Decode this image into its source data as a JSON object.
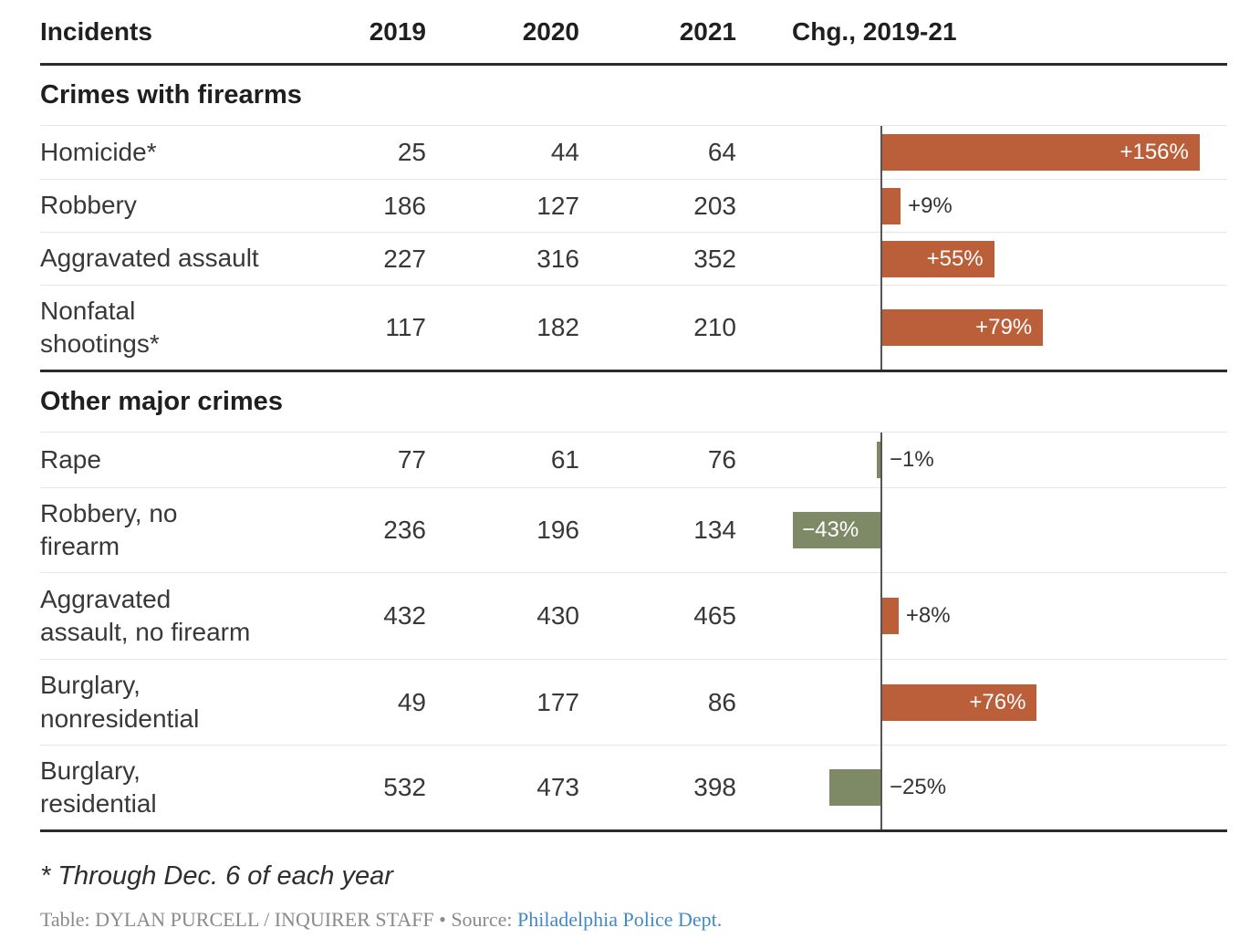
{
  "header": {
    "incidents": "Incidents",
    "y2019": "2019",
    "y2020": "2020",
    "y2021": "2021",
    "chg": "Chg., 2019-21"
  },
  "sections": [
    {
      "title": "Crimes with firearms",
      "rows": [
        {
          "label": "Homicide*",
          "v2019": "25",
          "v2020": "44",
          "v2021": "64",
          "chg": 156,
          "chg_label": "+156%"
        },
        {
          "label": "Robbery",
          "v2019": "186",
          "v2020": "127",
          "v2021": "203",
          "chg": 9,
          "chg_label": "+9%"
        },
        {
          "label": "Aggravated assault",
          "v2019": "227",
          "v2020": "316",
          "v2021": "352",
          "chg": 55,
          "chg_label": "+55%"
        },
        {
          "label": "Nonfatal\nshootings*",
          "v2019": "117",
          "v2020": "182",
          "v2021": "210",
          "chg": 79,
          "chg_label": "+79%"
        }
      ]
    },
    {
      "title": "Other major crimes",
      "rows": [
        {
          "label": "Rape",
          "v2019": "77",
          "v2020": "61",
          "v2021": "76",
          "chg": -1,
          "chg_label": "−1%"
        },
        {
          "label": "Robbery, no\nfirearm",
          "v2019": "236",
          "v2020": "196",
          "v2021": "134",
          "chg": -43,
          "chg_label": "−43%"
        },
        {
          "label": "Aggravated\nassault, no firearm",
          "v2019": "432",
          "v2020": "430",
          "v2021": "465",
          "chg": 8,
          "chg_label": "+8%"
        },
        {
          "label": "Burglary,\nnonresidential",
          "v2019": "49",
          "v2020": "177",
          "v2021": "86",
          "chg": 76,
          "chg_label": "+76%"
        },
        {
          "label": "Burglary,\nresidential",
          "v2019": "532",
          "v2020": "473",
          "v2021": "398",
          "chg": -25,
          "chg_label": "−25%"
        }
      ]
    }
  ],
  "footnote": "* Through Dec. 6 of each year",
  "credit": {
    "table_label": "Table: DYLAN PURCELL / INQUIRER STAFF",
    "bullet": "•",
    "source_label": "Source:",
    "source_link": "Philadelphia Police Dept."
  },
  "colors": {
    "bar_positive": "#bb5e3a",
    "bar_negative": "#7e8a66",
    "inside_label": "#ffffff",
    "outside_label": "#333333",
    "axis": "#555555",
    "rule_dark": "#2b2b2b",
    "rule_light": "#e6e6e6",
    "link_blue": "#4189c7"
  },
  "chart_data": {
    "type": "bar",
    "title": "Incidents",
    "categories": [
      "Homicide*",
      "Robbery",
      "Aggravated assault",
      "Nonfatal shootings*",
      "Rape",
      "Robbery, no firearm",
      "Aggravated assault, no firearm",
      "Burglary, nonresidential",
      "Burglary, residential"
    ],
    "groups": [
      "Crimes with firearms",
      "Crimes with firearms",
      "Crimes with firearms",
      "Crimes with firearms",
      "Other major crimes",
      "Other major crimes",
      "Other major crimes",
      "Other major crimes",
      "Other major crimes"
    ],
    "series": [
      {
        "name": "2019",
        "values": [
          25,
          186,
          227,
          117,
          77,
          236,
          432,
          49,
          532
        ]
      },
      {
        "name": "2020",
        "values": [
          44,
          127,
          316,
          182,
          61,
          196,
          430,
          177,
          473
        ]
      },
      {
        "name": "2021",
        "values": [
          64,
          203,
          352,
          210,
          76,
          134,
          465,
          86,
          398
        ]
      },
      {
        "name": "Chg., 2019-21 (%)",
        "values": [
          156,
          9,
          55,
          79,
          -1,
          -43,
          8,
          76,
          -25
        ]
      }
    ],
    "bar_orientation": "horizontal",
    "xlim_pct": [
      -45,
      170
    ],
    "positive_color": "#bb5e3a",
    "negative_color": "#7e8a66",
    "footnote": "* Through Dec. 6 of each year",
    "source": "Philadelphia Police Dept."
  }
}
